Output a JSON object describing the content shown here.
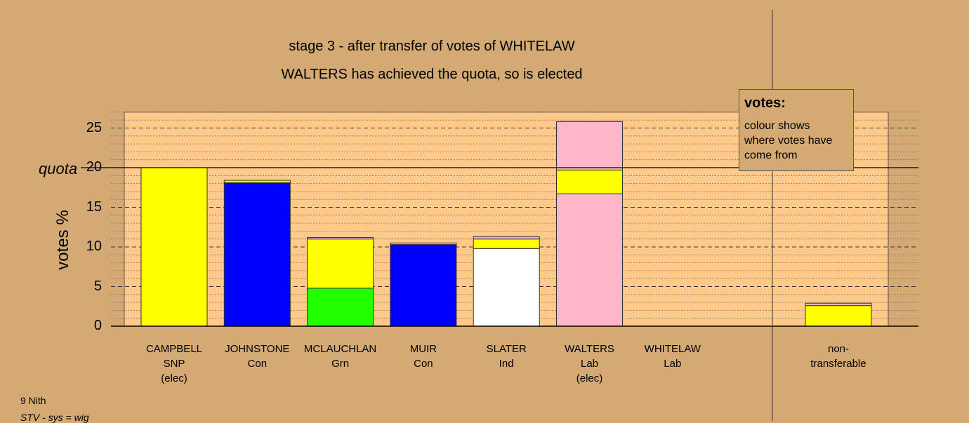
{
  "chart_data": {
    "type": "bar",
    "stacked": true,
    "title": "stage 3 - after transfer of votes of WHITELAW",
    "subtitle": "WALTERS has achieved the quota, so is elected",
    "ylabel": "votes %",
    "ylim": [
      0,
      27
    ],
    "yticks": [
      "0",
      "5",
      "10",
      "15",
      "20",
      "25"
    ],
    "quota": 20,
    "quota_label": "quota",
    "candidates": [
      {
        "name": "CAMPBELL",
        "party": "SNP",
        "status": "(elec)",
        "segments": [
          {
            "color": "#ffff00",
            "value": 20.0
          }
        ]
      },
      {
        "name": "JOHNSTONE",
        "party": "Con",
        "status": "",
        "segments": [
          {
            "color": "#0000ff",
            "value": 18.1
          },
          {
            "color": "#ffff00",
            "value": 0.3
          }
        ]
      },
      {
        "name": "MCLAUCHLAN",
        "party": "Grn",
        "status": "",
        "segments": [
          {
            "color": "#22ff00",
            "value": 4.8
          },
          {
            "color": "#ffff00",
            "value": 6.2
          },
          {
            "color": "#ffb6c8",
            "value": 0.2
          }
        ]
      },
      {
        "name": "MUIR",
        "party": "Con",
        "status": "",
        "segments": [
          {
            "color": "#0000ff",
            "value": 10.3
          },
          {
            "color": "#ffb6c8",
            "value": 0.2
          }
        ]
      },
      {
        "name": "SLATER",
        "party": "Ind",
        "status": "",
        "segments": [
          {
            "color": "#ffffff",
            "value": 9.8
          },
          {
            "color": "#ffff00",
            "value": 1.2
          },
          {
            "color": "#ffb6c8",
            "value": 0.3
          }
        ]
      },
      {
        "name": "WALTERS",
        "party": "Lab",
        "status": "(elec)",
        "segments": [
          {
            "color": "#ffb6c8",
            "value": 16.7
          },
          {
            "color": "#ffff00",
            "value": 3.0
          },
          {
            "color": "#ffb6c8",
            "value": 6.1
          }
        ]
      },
      {
        "name": "WHITELAW",
        "party": "Lab",
        "status": "",
        "segments": []
      }
    ],
    "non_transferable": {
      "label_line1": "non-",
      "label_line2": "transferable",
      "segments": [
        {
          "color": "#ffff00",
          "value": 2.6
        },
        {
          "color": "#ffb6c8",
          "value": 0.3
        }
      ]
    }
  },
  "legend": {
    "title": "votes:",
    "text": "colour shows where votes have come from"
  },
  "footer": {
    "ward": "9 Nith",
    "system": "STV - sys = wig"
  },
  "colors": {
    "background": "#d4a973",
    "plot_area": "#ffc98a"
  }
}
